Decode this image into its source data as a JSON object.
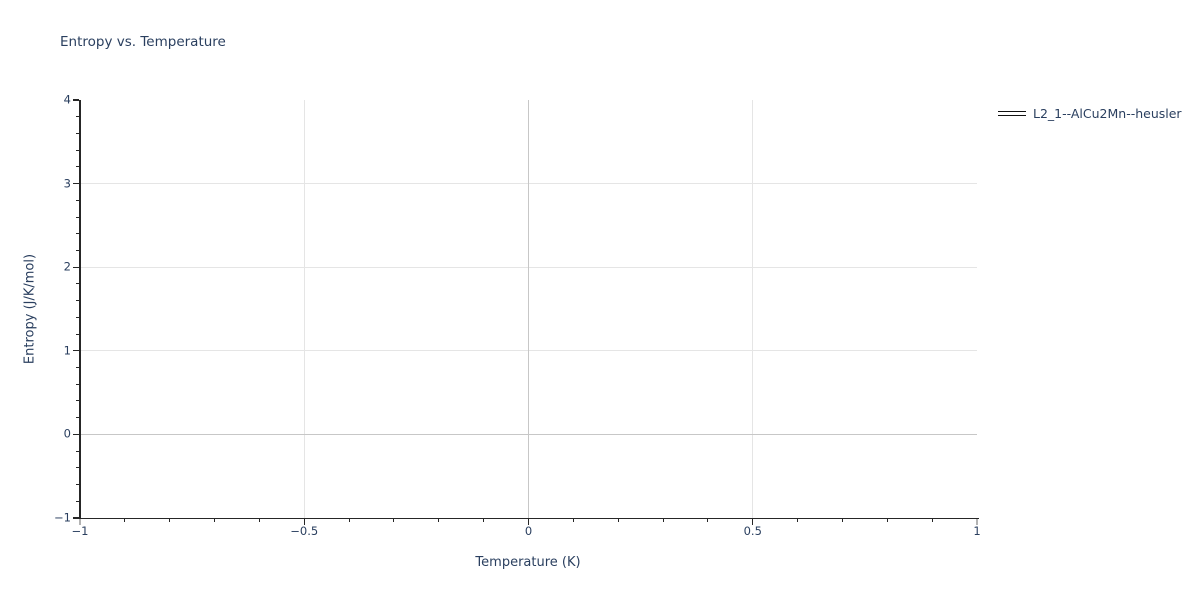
{
  "chart_data": {
    "type": "line",
    "title": "Entropy vs. Temperature",
    "xlabel": "Temperature (K)",
    "ylabel": "Entropy (J/K/mol)",
    "xlim": [
      -1,
      1
    ],
    "ylim": [
      -1,
      4
    ],
    "grid": true,
    "legend_position": "top-right-outside",
    "x_ticks": {
      "values": [
        -1,
        -0.5,
        0,
        0.5,
        1
      ],
      "labels": [
        "−1",
        "−0.5",
        "0",
        "0.5",
        "1"
      ],
      "minor_step": 0.1
    },
    "y_ticks": {
      "values": [
        4,
        3,
        2,
        1,
        0,
        -1
      ],
      "labels": [
        "4",
        "3",
        "2",
        "1",
        "0",
        "−1"
      ],
      "minor_step": 0.2
    },
    "gridlines": {
      "x_regular": [
        -0.5,
        0.5
      ],
      "y_regular": [
        3,
        2,
        1
      ],
      "x_zeroline": 0,
      "y_zeroline": 0
    },
    "series": [
      {
        "name": "L2_1--AlCu2Mn--heusler",
        "color": "#000000",
        "style": "solid",
        "x": [],
        "y": []
      }
    ]
  },
  "legend": {
    "items": [
      {
        "label": "L2_1--AlCu2Mn--heusler",
        "swatch_color": "#000000"
      }
    ]
  },
  "colors": {
    "text": "#2a3f5f",
    "axis": "#262626",
    "grid": "#e5e5e5",
    "zeroline": "#c7c7c7",
    "end_tick": "#b3b3b3",
    "background": "#ffffff"
  }
}
